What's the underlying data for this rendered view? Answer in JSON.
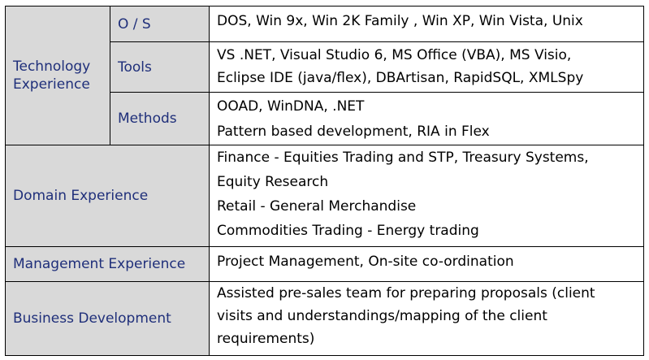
{
  "table": {
    "technology": {
      "label": "Technology\nExperience",
      "rows": [
        {
          "sub": "O / S",
          "lines": [
            "DOS, Win 9x, Win 2K Family , Win XP, Win Vista, Unix"
          ]
        },
        {
          "sub": "Tools",
          "lines": [
            "VS .NET, Visual Studio 6, MS Office (VBA), MS Visio,",
            "Eclipse IDE (java/flex), DBArtisan, RapidSQL, XMLSpy"
          ]
        },
        {
          "sub": "Methods",
          "lines": [
            "OOAD, WinDNA, .NET",
            "Pattern based development, RIA in Flex"
          ]
        }
      ]
    },
    "domain": {
      "label": "Domain Experience",
      "lines": [
        "Finance - Equities Trading and STP, Treasury Systems,",
        "Equity Research",
        "Retail - General Merchandise",
        "Commodities Trading - Energy trading"
      ]
    },
    "management": {
      "label": "Management Experience",
      "lines": [
        "Project Management, On-site co-ordination"
      ]
    },
    "business": {
      "label": "Business Development",
      "lines": [
        "Assisted pre-sales team for preparing proposals (client",
        "visits and understandings/mapping of the client",
        "requirements)"
      ]
    }
  }
}
